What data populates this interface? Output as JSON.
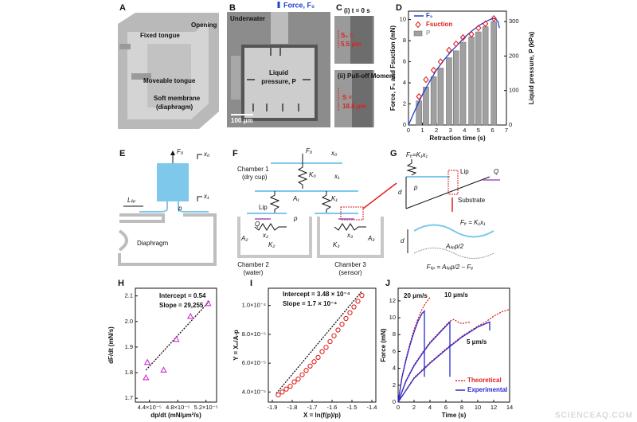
{
  "panel_labels": [
    "A",
    "B",
    "C",
    "D",
    "E",
    "F",
    "G",
    "H",
    "I",
    "J"
  ],
  "panel_a": {
    "texts": [
      "Opening",
      "Fixed tongue",
      "Moveable tongue",
      "Soft membrane",
      "(diaphragm)"
    ]
  },
  "panel_b": {
    "texts": [
      "Underwater",
      "Force, F₀",
      "Liquid",
      "pressure, P",
      "100 μm"
    ]
  },
  "panel_c": {
    "texts": [
      "(i) t = 0 s",
      "S₀ =",
      "5.5 μm",
      "(ii) Pull-off Moment",
      "S =",
      "18.8 μm"
    ]
  },
  "panel_e": {
    "texts": [
      "F₀",
      "x₀",
      "x₁",
      "Lₗᵢₚ",
      "p",
      "Diaphragm"
    ]
  },
  "panel_f": {
    "texts": [
      "F₀",
      "x₀",
      "Chamber 1",
      "(dry cup)",
      "K₀",
      "x₁",
      "A₁",
      "K₁",
      "Lip",
      "Q",
      "p",
      "A₂",
      "x₂",
      "K₂",
      "K₃",
      "x₃",
      "A₃",
      "Chamber 2",
      "(water)",
      "Chamber 3",
      "(sensor)"
    ]
  },
  "panel_g": {
    "texts": [
      "Fₑ=K₁x₁",
      "d",
      "Lip",
      "Q",
      "p",
      "Substrate",
      "Fₑ = K₁x₁",
      "d",
      "Aₗᵢₚp/2",
      "Fₗᵢₚ = Aₗᵢₚp/2 − Fₑ"
    ]
  },
  "watermark": "SCIENCEAQ.COM",
  "chart_data": [
    {
      "type": "combo",
      "xlabel": "Retraction time (s)",
      "ylabel": "Force, F₀ and Fsuction (mN)",
      "y2label": "Liquid pressure, P (kPa)",
      "xlim": [
        0,
        7
      ],
      "xticks": [
        0,
        1,
        2,
        3,
        4,
        5,
        6,
        7
      ],
      "ylim": [
        0,
        10.8
      ],
      "yticks": [
        0,
        2,
        4,
        6,
        8,
        10
      ],
      "y2lim": [
        0,
        330
      ],
      "y2ticks": [
        0,
        100,
        200,
        300
      ],
      "series": [
        {
          "name": "P",
          "type": "bar",
          "axis": "y2",
          "color": "#a0a0a0",
          "x": [
            0.75,
            1.25,
            1.8,
            2.3,
            2.9,
            3.4,
            3.9,
            4.5,
            5.0,
            5.5,
            6.1
          ],
          "values": [
            70,
            110,
            140,
            165,
            195,
            215,
            240,
            255,
            270,
            285,
            300
          ]
        },
        {
          "name": "F₀",
          "type": "line",
          "color": "#1f3fd0",
          "x": [
            0,
            0.5,
            1,
            1.5,
            2,
            2.5,
            3,
            3.5,
            4,
            4.5,
            5,
            5.5,
            6,
            6.2,
            6.4,
            6.5
          ],
          "values": [
            0,
            1.5,
            2.9,
            4.1,
            5.2,
            6.1,
            6.9,
            7.6,
            8.3,
            8.9,
            9.4,
            9.8,
            10.1,
            10.1,
            9.8,
            9.2
          ]
        },
        {
          "name": "Fsuction",
          "type": "scatter",
          "marker": "diamond",
          "color": "#e02020",
          "x": [
            0.75,
            1.25,
            1.8,
            2.3,
            2.9,
            3.4,
            3.9,
            4.5,
            5.0,
            5.5,
            6.1
          ],
          "values": [
            2.7,
            4.3,
            5.2,
            6.0,
            7.1,
            7.7,
            8.3,
            8.6,
            9.2,
            9.6,
            10.1
          ]
        }
      ]
    },
    {
      "type": "scatter",
      "xlabel": "dp/dt (mN/μm²/s)",
      "ylabel": "dF/dt (mN/s)",
      "xlim": [
        4.2e-05,
        5.35e-05
      ],
      "xticks": [
        {
          "value": 4.4e-05,
          "label": "4.4×10⁻⁵"
        },
        {
          "value": 4.8e-05,
          "label": "4.8×10⁻⁵"
        },
        {
          "value": 5.2e-05,
          "label": "5.2×10⁻⁵"
        }
      ],
      "ylim": [
        1.685,
        2.13
      ],
      "yticks": [
        1.7,
        1.8,
        1.9,
        {
          "value": 2,
          "label": "2.0"
        },
        2.1
      ],
      "annotations": [
        "Intercept = 0.54",
        "Slope = 29,255"
      ],
      "series": [
        {
          "type": "line",
          "dash": true,
          "color": "#111111",
          "x": [
            4.35e-05,
            5.25e-05
          ],
          "values": [
            1.81,
            2.08
          ]
        },
        {
          "type": "scatter",
          "marker": "triangle",
          "color": "#d030d0",
          "x": [
            4.35e-05,
            4.37e-05,
            4.6e-05,
            4.78e-05,
            4.98e-05,
            5.23e-05
          ],
          "values": [
            1.78,
            1.84,
            1.81,
            1.93,
            2.02,
            2.07
          ]
        }
      ]
    },
    {
      "type": "scatter",
      "xlabel": "X = ln(f(p)/p)",
      "ylabel": "Y = X₀/A-p",
      "xlim": [
        -1.92,
        -1.38
      ],
      "xticks": [
        -1.9,
        -1.8,
        -1.7,
        -1.6,
        -1.5,
        -1.4
      ],
      "ylim": [
        3.3e-05,
        0.000112
      ],
      "yticks": [
        {
          "value": 4e-05,
          "label": "4.0×10⁻⁵"
        },
        {
          "value": 6e-05,
          "label": "6.0×10⁻⁵"
        },
        {
          "value": 8e-05,
          "label": "8.0×10⁻⁵"
        },
        {
          "value": 0.0001,
          "label": "1.0×10⁻⁴"
        }
      ],
      "annotations": [
        "Intercept = 3.48 × 10⁻⁴",
        "Slope = 1.7 × 10⁻⁴"
      ],
      "series": [
        {
          "type": "line",
          "dash": true,
          "color": "#111111",
          "x": [
            -1.88,
            -1.45
          ],
          "values": [
            3.9e-05,
            0.00011
          ]
        },
        {
          "type": "scatter",
          "marker": "circle",
          "color": "#e02020",
          "x": [
            -1.87,
            -1.85,
            -1.83,
            -1.81,
            -1.79,
            -1.77,
            -1.75,
            -1.73,
            -1.71,
            -1.69,
            -1.67,
            -1.65,
            -1.63,
            -1.61,
            -1.59,
            -1.57,
            -1.55,
            -1.53,
            -1.51,
            -1.49,
            -1.47,
            -1.45
          ],
          "values": [
            3.8e-05,
            4e-05,
            4.2e-05,
            4.4e-05,
            4.7e-05,
            4.9e-05,
            5.2e-05,
            5.5e-05,
            5.8e-05,
            6.1e-05,
            6.4e-05,
            6.8e-05,
            7.1e-05,
            7.5e-05,
            7.9e-05,
            8.3e-05,
            8.7e-05,
            9.1e-05,
            9.5e-05,
            9.9e-05,
            0.000103,
            0.000107
          ]
        }
      ]
    },
    {
      "type": "line",
      "xlabel": "Time (s)",
      "ylabel": "Force (mN)",
      "xlim": [
        0,
        14
      ],
      "xticks": [
        0,
        2,
        4,
        6,
        8,
        10,
        12,
        14
      ],
      "ylim": [
        0,
        13.5
      ],
      "yticks": [
        0,
        2,
        4,
        6,
        8,
        10,
        12
      ],
      "annotations": [
        "20 μm/s",
        "10 μm/s",
        "5 μm/s"
      ],
      "legend": "lower right",
      "series": [
        {
          "name": "Theoretical",
          "type": "line",
          "dash": true,
          "color": "#e02020",
          "x": [
            0,
            0.5,
            1,
            1.5,
            2,
            2.5,
            3,
            3.5,
            4,
            null,
            0,
            1,
            2,
            3,
            4,
            5,
            6,
            6.5,
            7,
            7.5,
            8,
            9,
            null,
            0,
            2,
            4,
            6,
            8,
            10,
            11,
            12,
            13,
            14
          ],
          "values": [
            0,
            3.1,
            5.2,
            7,
            8.6,
            9.9,
            11,
            11.8,
            12.4,
            null,
            0,
            2.6,
            4.4,
            5.8,
            7.1,
            8.1,
            9.1,
            9.6,
            9.8,
            9.5,
            9.3,
            9.5,
            null,
            0,
            2.9,
            4.7,
            6.3,
            7.8,
            9,
            9.5,
            10.2,
            10.7,
            11
          ]
        },
        {
          "name": "Experimental",
          "type": "line",
          "color": "#2a2ad0",
          "x": [
            0,
            0.5,
            1,
            1.5,
            2,
            2.5,
            3,
            3.3,
            3.3,
            null,
            0,
            1,
            2,
            3,
            4,
            5,
            6,
            6.5,
            6.5,
            null,
            0,
            2,
            4,
            6,
            8,
            10,
            11.5,
            11.5
          ],
          "values": [
            0,
            3,
            5,
            6.8,
            8.3,
            9.6,
            10.5,
            10.8,
            3,
            null,
            0,
            2.5,
            4.3,
            5.7,
            7,
            8,
            9,
            9.5,
            3,
            null,
            0,
            2.8,
            4.6,
            6.2,
            7.7,
            8.9,
            9.5,
            8.5
          ]
        }
      ]
    }
  ]
}
